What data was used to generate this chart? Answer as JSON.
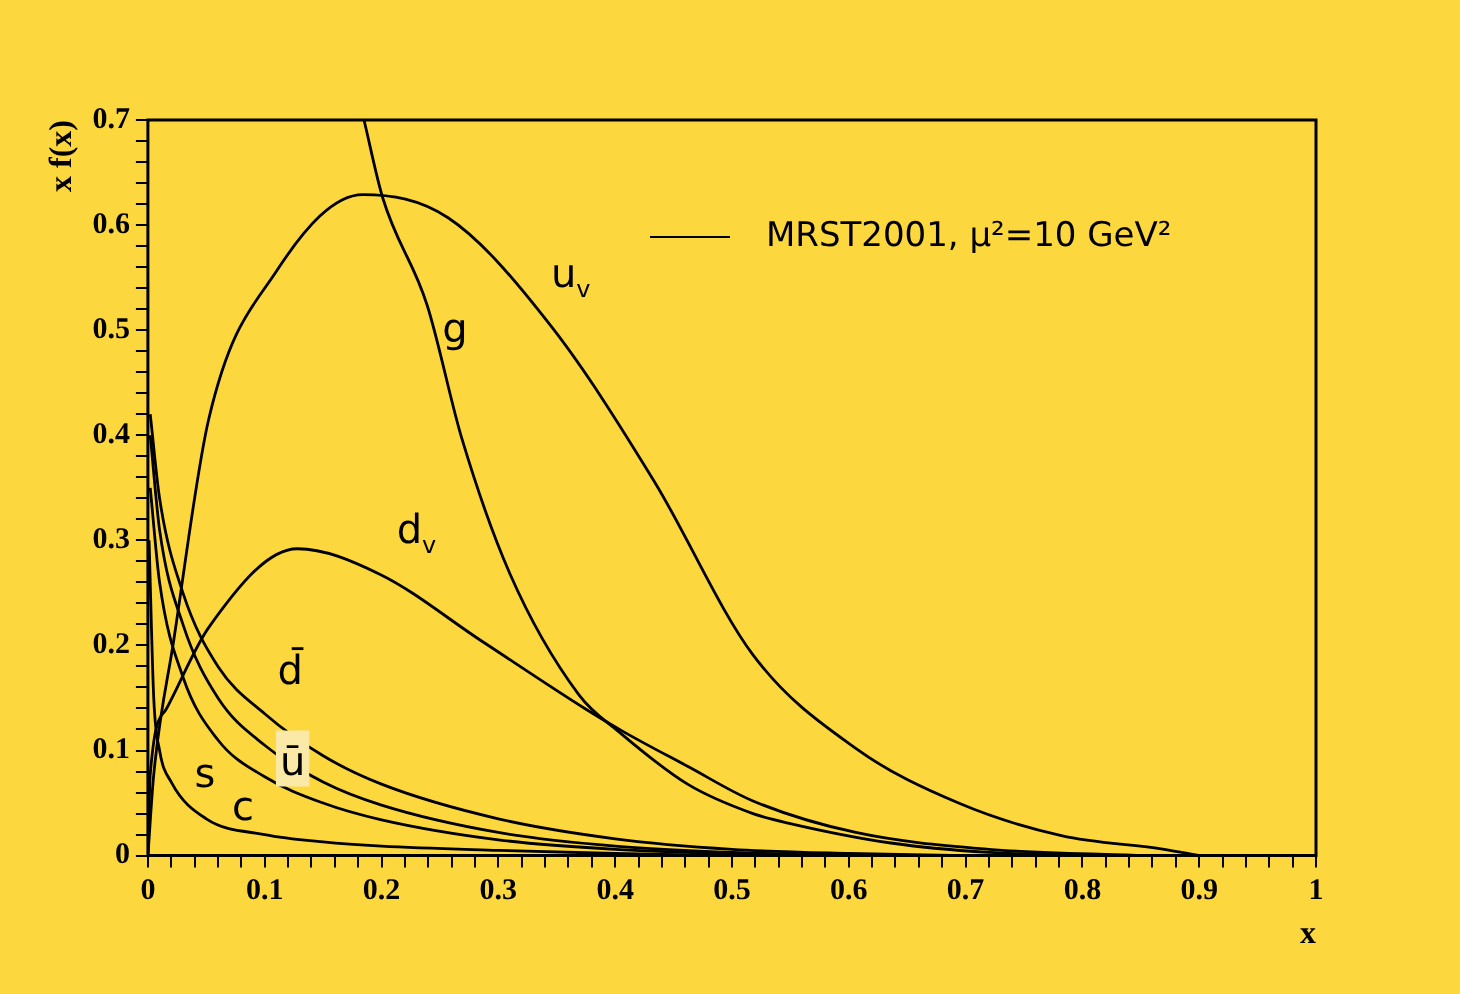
{
  "chart_data": {
    "type": "line",
    "xlabel": "x",
    "ylabel": "x f(x)",
    "annotations": [
      "MRST2001, μ²=10 GeV²"
    ],
    "xlim": [
      0,
      1
    ],
    "ylim": [
      0,
      0.7
    ],
    "xticks": [
      0,
      {
        "value": 0.02,
        "label": null
      },
      {
        "value": 0.04,
        "label": null
      },
      {
        "value": 0.06,
        "label": null
      },
      {
        "value": 0.08,
        "label": null
      },
      0.1,
      {
        "value": 0.12,
        "label": null
      },
      {
        "value": 0.14,
        "label": null
      },
      {
        "value": 0.16,
        "label": null
      },
      {
        "value": 0.18,
        "label": null
      },
      0.2,
      {
        "value": 0.22,
        "label": null
      },
      {
        "value": 0.24,
        "label": null
      },
      {
        "value": 0.26,
        "label": null
      },
      {
        "value": 0.28,
        "label": null
      },
      0.3,
      {
        "value": 0.32,
        "label": null
      },
      {
        "value": 0.34,
        "label": null
      },
      {
        "value": 0.36,
        "label": null
      },
      {
        "value": 0.38,
        "label": null
      },
      0.4,
      {
        "value": 0.42,
        "label": null
      },
      {
        "value": 0.44,
        "label": null
      },
      {
        "value": 0.46,
        "label": null
      },
      {
        "value": 0.48,
        "label": null
      },
      0.5,
      {
        "value": 0.52,
        "label": null
      },
      {
        "value": 0.54,
        "label": null
      },
      {
        "value": 0.56,
        "label": null
      },
      {
        "value": 0.58,
        "label": null
      },
      0.6,
      {
        "value": 0.62,
        "label": null
      },
      {
        "value": 0.64,
        "label": null
      },
      {
        "value": 0.66,
        "label": null
      },
      {
        "value": 0.68,
        "label": null
      },
      0.7,
      {
        "value": 0.72,
        "label": null
      },
      {
        "value": 0.74,
        "label": null
      },
      {
        "value": 0.76,
        "label": null
      },
      {
        "value": 0.78,
        "label": null
      },
      0.8,
      {
        "value": 0.82,
        "label": null
      },
      {
        "value": 0.84,
        "label": null
      },
      {
        "value": 0.86,
        "label": null
      },
      {
        "value": 0.88,
        "label": null
      },
      0.9,
      {
        "value": 0.92,
        "label": null
      },
      {
        "value": 0.94,
        "label": null
      },
      {
        "value": 0.96,
        "label": null
      },
      {
        "value": 0.98,
        "label": null
      },
      1
    ],
    "yticks": [
      0,
      {
        "value": 0.02,
        "label": null
      },
      {
        "value": 0.04,
        "label": null
      },
      {
        "value": 0.06,
        "label": null
      },
      {
        "value": 0.08,
        "label": null
      },
      0.1,
      {
        "value": 0.12,
        "label": null
      },
      {
        "value": 0.14,
        "label": null
      },
      {
        "value": 0.16,
        "label": null
      },
      {
        "value": 0.18,
        "label": null
      },
      0.2,
      {
        "value": 0.22,
        "label": null
      },
      {
        "value": 0.24,
        "label": null
      },
      {
        "value": 0.26,
        "label": null
      },
      {
        "value": 0.28,
        "label": null
      },
      0.3,
      {
        "value": 0.32,
        "label": null
      },
      {
        "value": 0.34,
        "label": null
      },
      {
        "value": 0.36,
        "label": null
      },
      {
        "value": 0.38,
        "label": null
      },
      0.4,
      {
        "value": 0.42,
        "label": null
      },
      {
        "value": 0.44,
        "label": null
      },
      {
        "value": 0.46,
        "label": null
      },
      {
        "value": 0.48,
        "label": null
      },
      0.5,
      {
        "value": 0.52,
        "label": null
      },
      {
        "value": 0.54,
        "label": null
      },
      {
        "value": 0.56,
        "label": null
      },
      {
        "value": 0.58,
        "label": null
      },
      0.6,
      {
        "value": 0.62,
        "label": null
      },
      {
        "value": 0.64,
        "label": null
      },
      {
        "value": 0.66,
        "label": null
      },
      {
        "value": 0.68,
        "label": null
      },
      0.7
    ],
    "grid": false,
    "legend": false,
    "marker": "none",
    "line_style": "solid",
    "series": [
      {
        "name": "u$_{v}$",
        "color": "#000000",
        "x": [
          0,
          0.005,
          0.022,
          0.052,
          0.11,
          0.184,
          0.257,
          0.345,
          0.433,
          0.518,
          0.606,
          0.694,
          0.782,
          0.87,
          0.9
        ],
        "values": [
          0,
          0.077,
          0.204,
          0.415,
          0.556,
          0.629,
          0.607,
          0.504,
          0.357,
          0.191,
          0.102,
          0.05,
          0.019,
          0.006,
          0
        ]
      },
      {
        "name": "g",
        "color": "#000000",
        "x": [
          0.185,
          0.201,
          0.239,
          0.269,
          0.31,
          0.369,
          0.403,
          0.462,
          0.518,
          0.548,
          0.636,
          0.72,
          0.8
        ],
        "values": [
          0.7,
          0.626,
          0.524,
          0.396,
          0.268,
          0.153,
          0.118,
          0.068,
          0.04,
          0.031,
          0.012,
          0.003,
          0
        ]
      },
      {
        "name": "d$_{v}$",
        "color": "#000000",
        "x": [
          0,
          0.002,
          0.016,
          0.052,
          0.128,
          0.198,
          0.286,
          0.374,
          0.407,
          0.462,
          0.518,
          0.606,
          0.72,
          0.85
        ],
        "values": [
          0,
          0.077,
          0.14,
          0.217,
          0.292,
          0.268,
          0.204,
          0.14,
          0.118,
          0.085,
          0.052,
          0.022,
          0.006,
          0
        ]
      },
      {
        "name": "d̄",
        "color": "#000000",
        "x": [
          0.002,
          0.01,
          0.03,
          0.06,
          0.1,
          0.15,
          0.2,
          0.3,
          0.4,
          0.5,
          0.6,
          0.7
        ],
        "values": [
          0.42,
          0.34,
          0.25,
          0.18,
          0.135,
          0.095,
          0.068,
          0.035,
          0.016,
          0.006,
          0.002,
          0
        ]
      },
      {
        "name": "ū",
        "color": "#000000",
        "x": [
          0.002,
          0.01,
          0.03,
          0.06,
          0.1,
          0.15,
          0.2,
          0.3,
          0.4,
          0.5,
          0.6
        ],
        "values": [
          0.4,
          0.31,
          0.22,
          0.15,
          0.105,
          0.07,
          0.048,
          0.022,
          0.009,
          0.003,
          0
        ]
      },
      {
        "name": "s",
        "color": "#000000",
        "x": [
          0.002,
          0.01,
          0.03,
          0.06,
          0.1,
          0.15,
          0.2,
          0.3,
          0.4,
          0.5,
          0.6
        ],
        "values": [
          0.35,
          0.26,
          0.17,
          0.11,
          0.075,
          0.05,
          0.034,
          0.015,
          0.006,
          0.002,
          0
        ]
      },
      {
        "name": "c",
        "color": "#000000",
        "x": [
          0.001,
          0.005,
          0.01,
          0.02,
          0.05,
          0.1,
          0.15,
          0.2,
          0.3,
          0.4,
          0.5
        ],
        "values": [
          0.3,
          0.15,
          0.1,
          0.07,
          0.035,
          0.02,
          0.013,
          0.009,
          0.005,
          0.002,
          0
        ]
      }
    ]
  }
}
